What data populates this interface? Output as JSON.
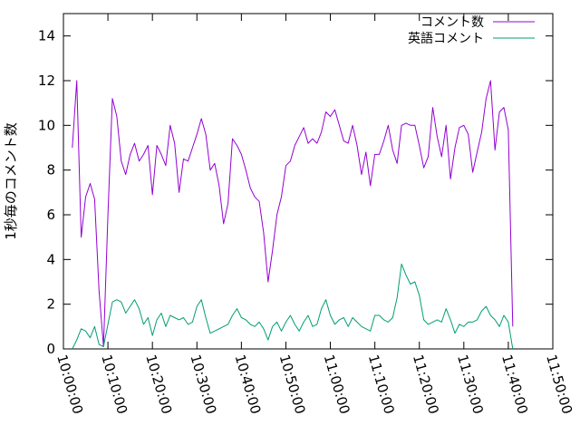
{
  "chart_data": {
    "type": "line",
    "title": "",
    "xlabel": "",
    "ylabel": "1秒毎のコメント数",
    "x_unit": "time of day (HH:MM:SS)",
    "xlim": [
      "10:00:00",
      "11:50:00"
    ],
    "ylim": [
      0,
      15
    ],
    "x_ticks": [
      "10:00:00",
      "10:10:00",
      "10:20:00",
      "10:30:00",
      "10:40:00",
      "10:50:00",
      "11:00:00",
      "11:10:00",
      "11:20:00",
      "11:30:00",
      "11:40:00",
      "11:50:00"
    ],
    "y_ticks": [
      "0",
      "2",
      "4",
      "6",
      "8",
      "10",
      "12",
      "14"
    ],
    "grid": false,
    "legend": "top-right",
    "series": [
      {
        "name": "コメント数",
        "color": "#9400d3",
        "points": [
          [
            "10:02:00",
            9.0
          ],
          [
            "10:03:00",
            12.0
          ],
          [
            "10:04:00",
            5.0
          ],
          [
            "10:05:00",
            6.8
          ],
          [
            "10:06:00",
            7.4
          ],
          [
            "10:07:00",
            6.7
          ],
          [
            "10:08:00",
            2.6
          ],
          [
            "10:09:00",
            0.1
          ],
          [
            "10:10:00",
            6.0
          ],
          [
            "10:11:00",
            11.2
          ],
          [
            "10:12:00",
            10.4
          ],
          [
            "10:13:00",
            8.4
          ],
          [
            "10:14:00",
            7.8
          ],
          [
            "10:15:00",
            8.7
          ],
          [
            "10:16:00",
            9.2
          ],
          [
            "10:17:00",
            8.4
          ],
          [
            "10:18:00",
            8.7
          ],
          [
            "10:19:00",
            9.1
          ],
          [
            "10:20:00",
            6.9
          ],
          [
            "10:21:00",
            9.1
          ],
          [
            "10:22:00",
            8.7
          ],
          [
            "10:23:00",
            8.2
          ],
          [
            "10:24:00",
            10.0
          ],
          [
            "10:25:00",
            9.2
          ],
          [
            "10:26:00",
            7.0
          ],
          [
            "10:27:00",
            8.5
          ],
          [
            "10:28:00",
            8.4
          ],
          [
            "10:29:00",
            9.0
          ],
          [
            "10:30:00",
            9.6
          ],
          [
            "10:31:00",
            10.3
          ],
          [
            "10:32:00",
            9.6
          ],
          [
            "10:33:00",
            8.0
          ],
          [
            "10:34:00",
            8.3
          ],
          [
            "10:35:00",
            7.3
          ],
          [
            "10:36:00",
            5.6
          ],
          [
            "10:37:00",
            6.5
          ],
          [
            "10:38:00",
            9.4
          ],
          [
            "10:39:00",
            9.1
          ],
          [
            "10:40:00",
            8.7
          ],
          [
            "10:41:00",
            8.0
          ],
          [
            "10:42:00",
            7.2
          ],
          [
            "10:43:00",
            6.8
          ],
          [
            "10:44:00",
            6.6
          ],
          [
            "10:45:00",
            5.2
          ],
          [
            "10:46:00",
            3.0
          ],
          [
            "10:47:00",
            4.4
          ],
          [
            "10:48:00",
            6.0
          ],
          [
            "10:49:00",
            6.8
          ],
          [
            "10:50:00",
            8.2
          ],
          [
            "10:51:00",
            8.4
          ],
          [
            "10:52:00",
            9.1
          ],
          [
            "10:53:00",
            9.5
          ],
          [
            "10:54:00",
            9.9
          ],
          [
            "10:55:00",
            9.2
          ],
          [
            "10:56:00",
            9.4
          ],
          [
            "10:57:00",
            9.2
          ],
          [
            "10:58:00",
            9.7
          ],
          [
            "10:59:00",
            10.6
          ],
          [
            "11:00:00",
            10.4
          ],
          [
            "11:01:00",
            10.7
          ],
          [
            "11:02:00",
            10.0
          ],
          [
            "11:03:00",
            9.3
          ],
          [
            "11:04:00",
            9.2
          ],
          [
            "11:05:00",
            10.0
          ],
          [
            "11:06:00",
            9.1
          ],
          [
            "11:07:00",
            7.8
          ],
          [
            "11:08:00",
            8.8
          ],
          [
            "11:09:00",
            7.3
          ],
          [
            "11:10:00",
            8.7
          ],
          [
            "11:11:00",
            8.7
          ],
          [
            "11:12:00",
            9.3
          ],
          [
            "11:13:00",
            10.0
          ],
          [
            "11:14:00",
            8.9
          ],
          [
            "11:15:00",
            8.3
          ],
          [
            "11:16:00",
            10.0
          ],
          [
            "11:17:00",
            10.1
          ],
          [
            "11:18:00",
            10.0
          ],
          [
            "11:19:00",
            10.0
          ],
          [
            "11:20:00",
            9.1
          ],
          [
            "11:21:00",
            8.1
          ],
          [
            "11:22:00",
            8.6
          ],
          [
            "11:23:00",
            10.8
          ],
          [
            "11:24:00",
            9.5
          ],
          [
            "11:25:00",
            8.6
          ],
          [
            "11:26:00",
            10.0
          ],
          [
            "11:27:00",
            7.6
          ],
          [
            "11:28:00",
            9.0
          ],
          [
            "11:29:00",
            9.9
          ],
          [
            "11:30:00",
            10.0
          ],
          [
            "11:31:00",
            9.6
          ],
          [
            "11:32:00",
            7.9
          ],
          [
            "11:33:00",
            8.8
          ],
          [
            "11:34:00",
            9.7
          ],
          [
            "11:35:00",
            11.2
          ],
          [
            "11:36:00",
            12.0
          ],
          [
            "11:37:00",
            8.9
          ],
          [
            "11:38:00",
            10.6
          ],
          [
            "11:39:00",
            10.8
          ],
          [
            "11:40:00",
            9.8
          ],
          [
            "11:41:00",
            1.0
          ]
        ]
      },
      {
        "name": "英語コメント",
        "color": "#009e73",
        "points": [
          [
            "10:02:00",
            0.0
          ],
          [
            "10:03:00",
            0.4
          ],
          [
            "10:04:00",
            0.9
          ],
          [
            "10:05:00",
            0.8
          ],
          [
            "10:06:00",
            0.5
          ],
          [
            "10:07:00",
            1.0
          ],
          [
            "10:08:00",
            0.2
          ],
          [
            "10:09:00",
            0.1
          ],
          [
            "10:10:00",
            1.1
          ],
          [
            "10:11:00",
            2.1
          ],
          [
            "10:12:00",
            2.2
          ],
          [
            "10:13:00",
            2.1
          ],
          [
            "10:14:00",
            1.6
          ],
          [
            "10:15:00",
            1.9
          ],
          [
            "10:16:00",
            2.2
          ],
          [
            "10:17:00",
            1.8
          ],
          [
            "10:18:00",
            1.1
          ],
          [
            "10:19:00",
            1.4
          ],
          [
            "10:20:00",
            0.6
          ],
          [
            "10:21:00",
            1.3
          ],
          [
            "10:22:00",
            1.6
          ],
          [
            "10:23:00",
            1.0
          ],
          [
            "10:24:00",
            1.5
          ],
          [
            "10:25:00",
            1.4
          ],
          [
            "10:26:00",
            1.3
          ],
          [
            "10:27:00",
            1.4
          ],
          [
            "10:28:00",
            1.1
          ],
          [
            "10:29:00",
            1.2
          ],
          [
            "10:30:00",
            1.9
          ],
          [
            "10:31:00",
            2.2
          ],
          [
            "10:32:00",
            1.4
          ],
          [
            "10:33:00",
            0.7
          ],
          [
            "10:34:00",
            0.8
          ],
          [
            "10:35:00",
            0.9
          ],
          [
            "10:36:00",
            1.0
          ],
          [
            "10:37:00",
            1.1
          ],
          [
            "10:38:00",
            1.5
          ],
          [
            "10:39:00",
            1.8
          ],
          [
            "10:40:00",
            1.4
          ],
          [
            "10:41:00",
            1.3
          ],
          [
            "10:42:00",
            1.1
          ],
          [
            "10:43:00",
            1.0
          ],
          [
            "10:44:00",
            1.2
          ],
          [
            "10:45:00",
            0.9
          ],
          [
            "10:46:00",
            0.4
          ],
          [
            "10:47:00",
            1.0
          ],
          [
            "10:48:00",
            1.2
          ],
          [
            "10:49:00",
            0.8
          ],
          [
            "10:50:00",
            1.2
          ],
          [
            "10:51:00",
            1.5
          ],
          [
            "10:52:00",
            1.1
          ],
          [
            "10:53:00",
            0.8
          ],
          [
            "10:54:00",
            1.2
          ],
          [
            "10:55:00",
            1.5
          ],
          [
            "10:56:00",
            1.0
          ],
          [
            "10:57:00",
            1.1
          ],
          [
            "10:58:00",
            1.8
          ],
          [
            "10:59:00",
            2.2
          ],
          [
            "11:00:00",
            1.5
          ],
          [
            "11:01:00",
            1.1
          ],
          [
            "11:02:00",
            1.3
          ],
          [
            "11:03:00",
            1.4
          ],
          [
            "11:04:00",
            1.0
          ],
          [
            "11:05:00",
            1.4
          ],
          [
            "11:06:00",
            1.2
          ],
          [
            "11:07:00",
            1.0
          ],
          [
            "11:08:00",
            0.9
          ],
          [
            "11:09:00",
            0.8
          ],
          [
            "11:10:00",
            1.5
          ],
          [
            "11:11:00",
            1.5
          ],
          [
            "11:12:00",
            1.3
          ],
          [
            "11:13:00",
            1.2
          ],
          [
            "11:14:00",
            1.4
          ],
          [
            "11:15:00",
            2.3
          ],
          [
            "11:16:00",
            3.8
          ],
          [
            "11:17:00",
            3.3
          ],
          [
            "11:18:00",
            2.9
          ],
          [
            "11:19:00",
            3.0
          ],
          [
            "11:20:00",
            2.4
          ],
          [
            "11:21:00",
            1.3
          ],
          [
            "11:22:00",
            1.1
          ],
          [
            "11:23:00",
            1.2
          ],
          [
            "11:24:00",
            1.3
          ],
          [
            "11:25:00",
            1.2
          ],
          [
            "11:26:00",
            1.8
          ],
          [
            "11:27:00",
            1.3
          ],
          [
            "11:28:00",
            0.7
          ],
          [
            "11:29:00",
            1.1
          ],
          [
            "11:30:00",
            1.0
          ],
          [
            "11:31:00",
            1.2
          ],
          [
            "11:32:00",
            1.2
          ],
          [
            "11:33:00",
            1.3
          ],
          [
            "11:34:00",
            1.7
          ],
          [
            "11:35:00",
            1.9
          ],
          [
            "11:36:00",
            1.5
          ],
          [
            "11:37:00",
            1.3
          ],
          [
            "11:38:00",
            1.0
          ],
          [
            "11:39:00",
            1.5
          ],
          [
            "11:40:00",
            1.2
          ],
          [
            "11:41:00",
            0.0
          ]
        ]
      }
    ]
  }
}
